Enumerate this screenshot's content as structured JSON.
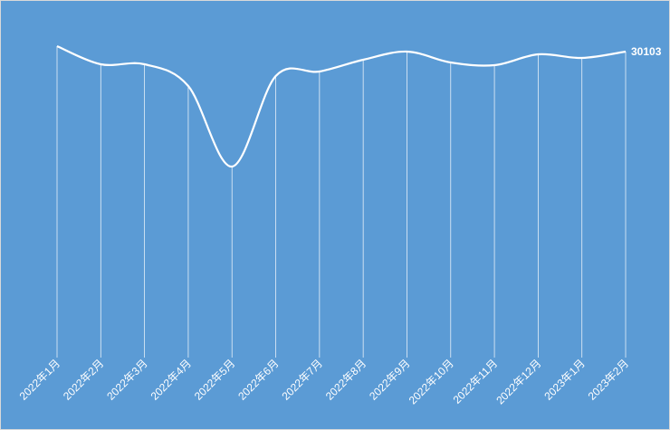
{
  "chart_data": {
    "type": "line",
    "categories": [
      "2022年1月",
      "2022年2月",
      "2022年3月",
      "2022年4月",
      "2022年5月",
      "2022年6月",
      "2022年7月",
      "2022年8月",
      "2022年9月",
      "2022年10月",
      "2022年11月",
      "2022年12月",
      "2023年1月",
      "2023年2月"
    ],
    "series": [
      {
        "color": "#ffffff",
        "values": [
          30637,
          28855,
          28855,
          26718,
          18792,
          27697,
          28142,
          29301,
          30103,
          29034,
          28766,
          29835,
          29479,
          30103
        ]
      }
    ],
    "ylim": [
      0,
      35000
    ],
    "background": "#5b9bd5"
  }
}
